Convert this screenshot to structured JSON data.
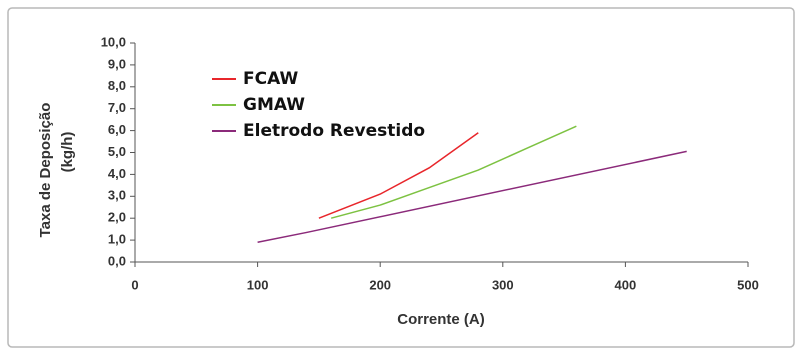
{
  "chart_data": {
    "type": "line",
    "xlabel": "Corrente (A)",
    "ylabel": [
      "Taxa de Deposição",
      "(kg/h)"
    ],
    "xlim": [
      0,
      500
    ],
    "ylim": [
      0,
      10
    ],
    "xticks": [
      0,
      100,
      200,
      300,
      400,
      500
    ],
    "yticks": [
      {
        "value": 0,
        "label": "0,0"
      },
      {
        "value": 1,
        "label": "1,0"
      },
      {
        "value": 2,
        "label": "2,0"
      },
      {
        "value": 3,
        "label": "3,0"
      },
      {
        "value": 4,
        "label": "4,0"
      },
      {
        "value": 5,
        "label": "5,0"
      },
      {
        "value": 6,
        "label": "6,0"
      },
      {
        "value": 7,
        "label": "7,0"
      },
      {
        "value": 8,
        "label": "8,0"
      },
      {
        "value": 9,
        "label": "9,0"
      },
      {
        "value": 10,
        "label": "10,0"
      }
    ],
    "grid": false,
    "legend": "top-left",
    "series": [
      {
        "name": "FCAW",
        "color": "#e8262b",
        "x": [
          150,
          200,
          240,
          280
        ],
        "values": [
          2.0,
          3.1,
          4.3,
          5.9
        ]
      },
      {
        "name": "GMAW",
        "color": "#7dc242",
        "x": [
          160,
          200,
          240,
          280,
          320,
          360
        ],
        "values": [
          2.0,
          2.6,
          3.4,
          4.2,
          5.2,
          6.2
        ]
      },
      {
        "name": "Eletrodo Revestido",
        "color": "#8b2a7a",
        "x": [
          100,
          140,
          450
        ],
        "values": [
          0.9,
          1.35,
          5.05
        ]
      }
    ]
  }
}
